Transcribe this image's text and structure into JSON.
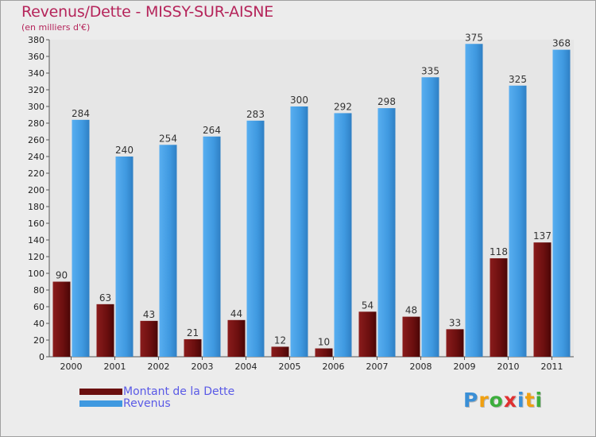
{
  "title": "Revenus/Dette - MISSY-SUR-AISNE",
  "subtitle": "(en milliers d'€)",
  "colors": {
    "dette": "#6b0f0f",
    "revenus": "#3f99e0",
    "title": "#b5245a",
    "legend_text": "#5a5ae6"
  },
  "logo": {
    "letters": [
      {
        "char": "P",
        "color": "#3a8fd6"
      },
      {
        "char": "r",
        "color": "#f0a010"
      },
      {
        "char": "o",
        "color": "#3cae3c"
      },
      {
        "char": "x",
        "color": "#e03030"
      },
      {
        "char": "i",
        "color": "#3a8fd6"
      },
      {
        "char": "t",
        "color": "#f0a010"
      },
      {
        "char": "i",
        "color": "#3cae3c"
      }
    ]
  },
  "chart_data": {
    "type": "bar",
    "title": "Revenus/Dette - MISSY-SUR-AISNE",
    "subtitle": "(en milliers d'€)",
    "xlabel": "",
    "ylabel": "",
    "ylim": [
      0,
      380
    ],
    "ytick_step": 20,
    "grid": false,
    "legend_position": "bottom-left",
    "categories": [
      "2000",
      "2001",
      "2002",
      "2003",
      "2004",
      "2005",
      "2006",
      "2007",
      "2008",
      "2009",
      "2010",
      "2011"
    ],
    "series": [
      {
        "name": "Montant de la Dette",
        "color": "#6b0f0f",
        "values": [
          90,
          63,
          43,
          21,
          44,
          12,
          10,
          54,
          48,
          33,
          118,
          137
        ]
      },
      {
        "name": "Revenus",
        "color": "#3f99e0",
        "values": [
          284,
          240,
          254,
          264,
          283,
          300,
          292,
          298,
          335,
          375,
          325,
          368
        ]
      }
    ]
  }
}
